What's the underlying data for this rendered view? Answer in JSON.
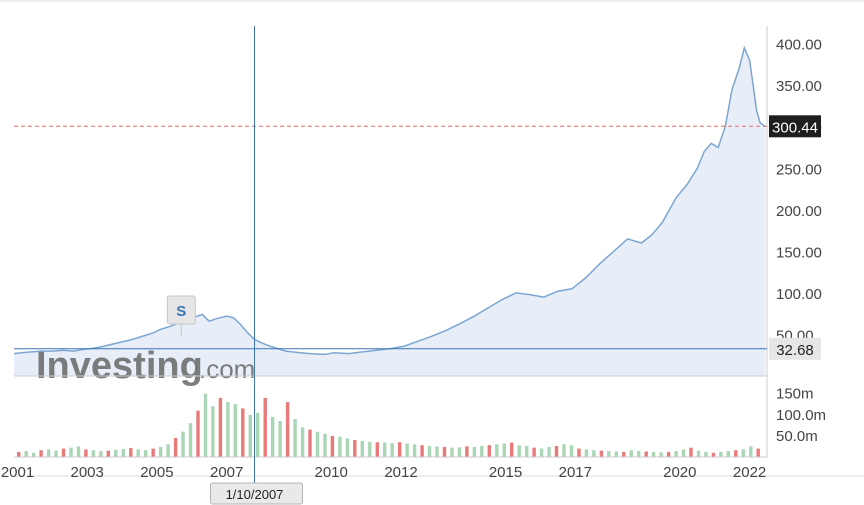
{
  "chart_data": {
    "type": "area",
    "price_series": {
      "x": [
        2000.8,
        2001.0,
        2001.3,
        2001.6,
        2001.9,
        2002.2,
        2002.5,
        2002.8,
        2003.0,
        2003.3,
        2003.6,
        2003.9,
        2004.2,
        2004.5,
        2004.8,
        2005.0,
        2005.3,
        2005.6,
        2005.9,
        2006.2,
        2006.4,
        2006.6,
        2006.9,
        2007.1,
        2007.3,
        2007.5,
        2007.7,
        2007.9,
        2008.2,
        2008.6,
        2009.0,
        2009.3,
        2009.7,
        2010.0,
        2010.4,
        2010.8,
        2011.2,
        2011.6,
        2012.0,
        2012.4,
        2012.8,
        2013.2,
        2013.6,
        2014.0,
        2014.4,
        2014.8,
        2015.2,
        2015.6,
        2016.0,
        2016.4,
        2016.8,
        2017.2,
        2017.6,
        2018.0,
        2018.4,
        2018.8,
        2019.1,
        2019.4,
        2019.8,
        2020.1,
        2020.4,
        2020.6,
        2020.8,
        2021.0,
        2021.2,
        2021.4,
        2021.6,
        2021.75,
        2021.9,
        2022.0,
        2022.1,
        2022.2,
        2022.35
      ],
      "y": [
        27,
        28,
        29,
        30,
        30,
        31,
        30,
        32,
        33,
        35,
        38,
        41,
        44,
        48,
        52,
        56,
        60,
        65,
        70,
        74,
        66,
        69,
        72,
        70,
        62,
        52,
        44,
        40,
        35,
        30,
        28,
        27,
        26,
        28,
        27,
        29,
        31,
        33,
        36,
        42,
        48,
        55,
        63,
        72,
        82,
        92,
        100,
        98,
        95,
        102,
        105,
        118,
        135,
        150,
        165,
        160,
        170,
        185,
        215,
        230,
        250,
        270,
        280,
        275,
        300,
        345,
        370,
        395,
        380,
        350,
        320,
        305,
        300
      ]
    },
    "volume_series": {
      "unit": "m",
      "values": [
        12,
        14,
        10,
        16,
        18,
        15,
        20,
        22,
        25,
        18,
        16,
        14,
        15,
        17,
        19,
        21,
        18,
        16,
        20,
        24,
        30,
        45,
        60,
        80,
        110,
        150,
        120,
        140,
        130,
        125,
        115,
        100,
        105,
        140,
        95,
        85,
        130,
        90,
        70,
        65,
        60,
        55,
        50,
        48,
        44,
        40,
        38,
        36,
        35,
        34,
        33,
        35,
        32,
        30,
        28,
        26,
        25,
        24,
        22,
        23,
        25,
        24,
        26,
        28,
        30,
        32,
        34,
        28,
        26,
        22,
        20,
        24,
        26,
        30,
        28,
        20,
        18,
        16,
        15,
        14,
        13,
        12,
        16,
        14,
        13,
        12,
        11,
        12,
        14,
        18,
        22,
        15,
        12,
        10,
        12,
        14,
        16,
        18,
        25,
        20
      ]
    },
    "x_ticks": [
      {
        "label": "2001",
        "x": 2000.9
      },
      {
        "label": "2003",
        "x": 2002.9
      },
      {
        "label": "2005",
        "x": 2004.9
      },
      {
        "label": "2007",
        "x": 2006.9
      },
      {
        "label": "2010",
        "x": 2009.9
      },
      {
        "label": "2012",
        "x": 2011.9
      },
      {
        "label": "2015",
        "x": 2014.9
      },
      {
        "label": "2017",
        "x": 2016.9
      },
      {
        "label": "2020",
        "x": 2019.9
      },
      {
        "label": "2022",
        "x": 2021.9
      }
    ],
    "x_range": [
      2000.8,
      2022.4
    ],
    "price_axis": {
      "ticks": [
        "400.00",
        "350.00",
        "300.00",
        "250.00",
        "200.00",
        "150.00",
        "100.00",
        "50.00"
      ],
      "values": [
        400,
        350,
        300,
        250,
        200,
        150,
        100,
        50
      ],
      "ylim": [
        0,
        420
      ]
    },
    "volume_axis": {
      "ticks": [
        "150m",
        "100.0m",
        "50.0m"
      ],
      "values": [
        150,
        100,
        50
      ],
      "ylim": [
        0,
        180
      ]
    },
    "last_price_label": "300.44",
    "last_price_value": 300.44,
    "crosshair_price_label": "32.68",
    "crosshair_price_value": 32.68,
    "crosshair_date_label": "1/10/2007",
    "crosshair_x": 2007.7,
    "event_marker": {
      "label": "S",
      "x": 2005.6
    },
    "colors": {
      "line": "#7ba6d1",
      "fill": "#e7eef8",
      "crosshair": "#3c74b4",
      "last_price": "#e36b6b",
      "label_dark": "#1e1e1e",
      "label_gray": "#e6e6e6",
      "vol_up": "#a9d6b5",
      "vol_down": "#e87a7a"
    },
    "grid": false
  },
  "watermark": {
    "brand": "Investing",
    "suffix": ".com"
  }
}
